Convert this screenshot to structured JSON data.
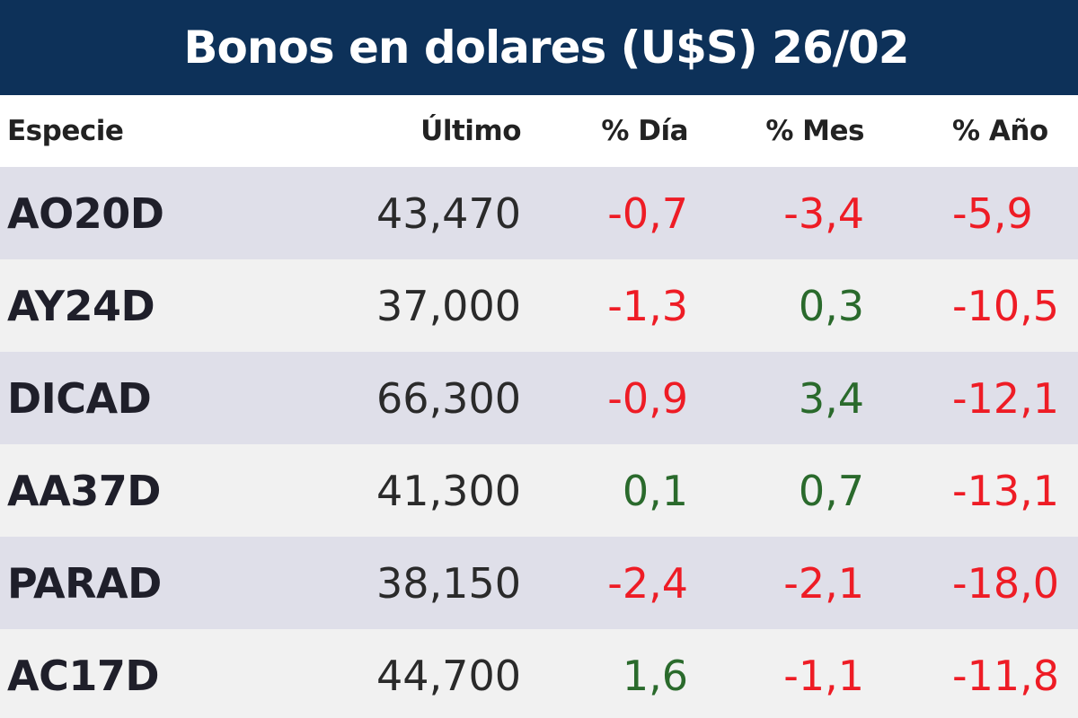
{
  "title": "Bonos en dolares (U$S) 26/02",
  "columns": {
    "especie": "Especie",
    "ultimo": "Último",
    "dia": "% Día",
    "mes": "% Mes",
    "ano": "% Año"
  },
  "colors": {
    "header_bg": "#0d3159",
    "negative": "#ee1c25",
    "positive": "#2a6a2c",
    "row_shade": "#dfdfe9",
    "row_light": "#f1f1f1"
  },
  "rows": [
    {
      "especie": "AO20D",
      "ultimo": "43,470",
      "dia": "-0,7",
      "mes": "-3,4",
      "ano": "-5,9"
    },
    {
      "especie": "AY24D",
      "ultimo": "37,000",
      "dia": "-1,3",
      "mes": "0,3",
      "ano": "-10,5"
    },
    {
      "especie": "DICAD",
      "ultimo": "66,300",
      "dia": "-0,9",
      "mes": "3,4",
      "ano": "-12,1"
    },
    {
      "especie": "AA37D",
      "ultimo": "41,300",
      "dia": "0,1",
      "mes": "0,7",
      "ano": "-13,1"
    },
    {
      "especie": "PARAD",
      "ultimo": "38,150",
      "dia": "-2,4",
      "mes": "-2,1",
      "ano": "-18,0"
    },
    {
      "especie": "AC17D",
      "ultimo": "44,700",
      "dia": "1,6",
      "mes": "-1,1",
      "ano": "-11,8"
    }
  ]
}
